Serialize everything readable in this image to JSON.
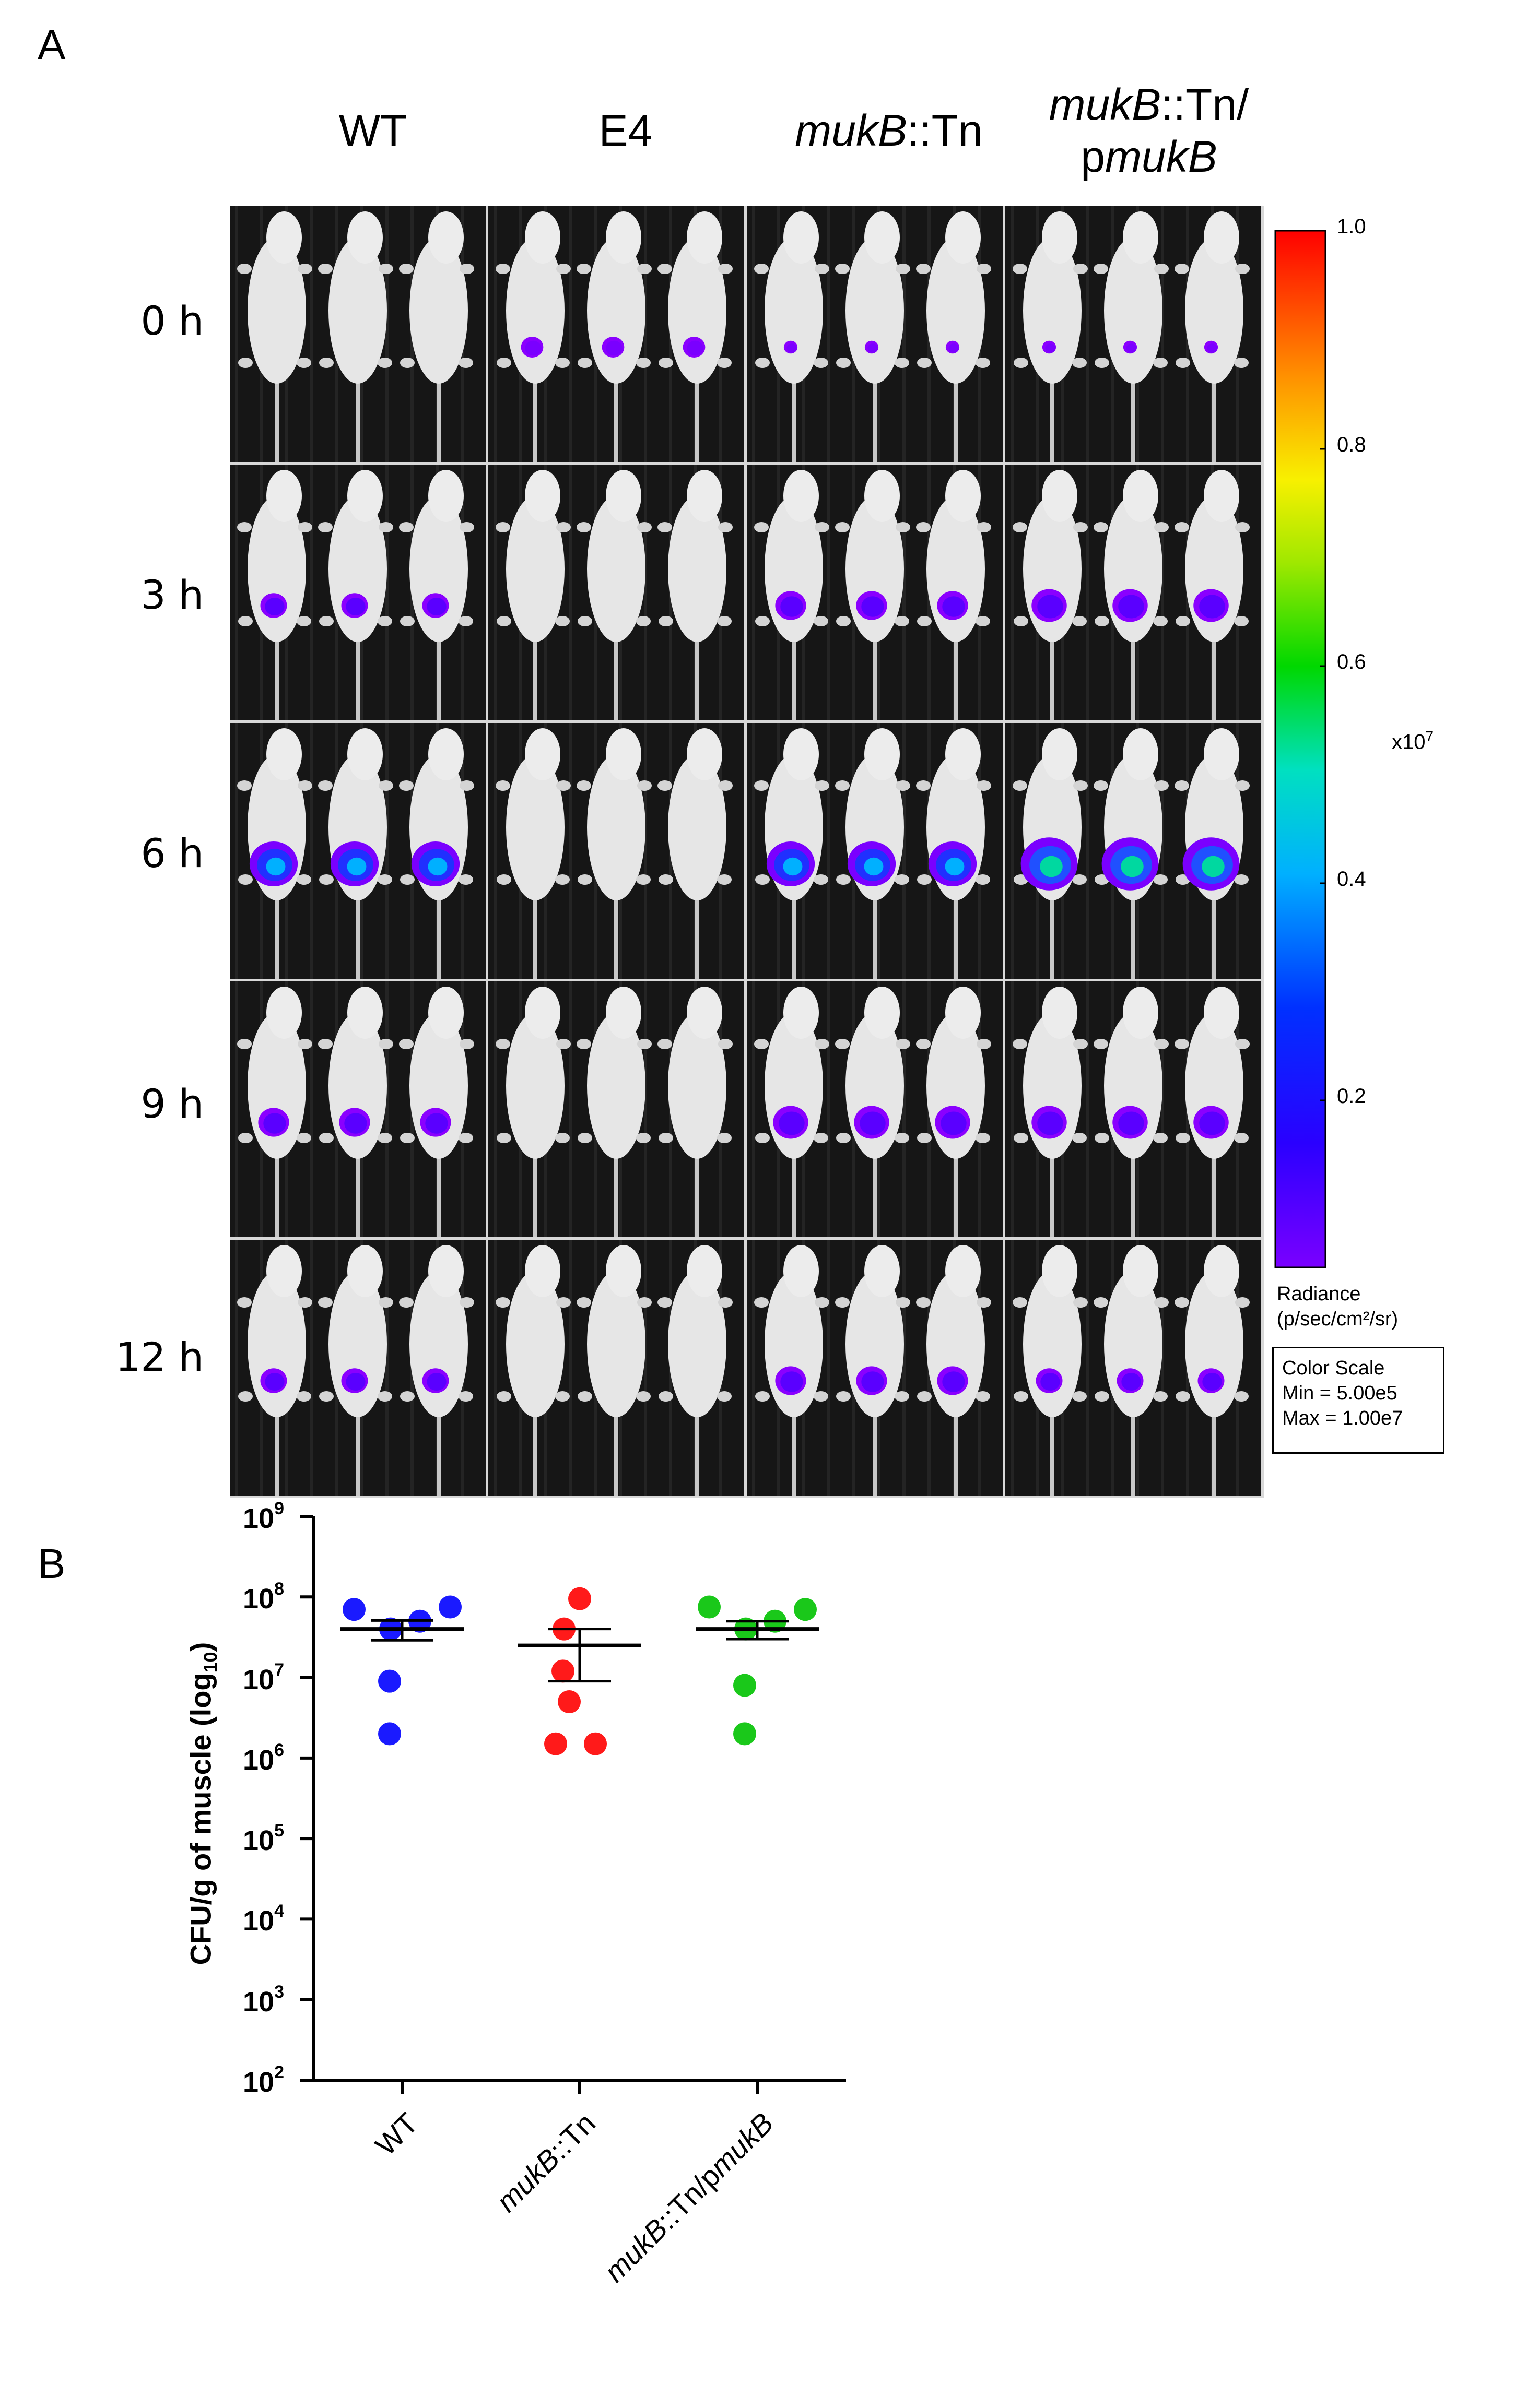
{
  "panel_a": {
    "letter": "A",
    "columns": [
      {
        "italic": "",
        "plain": "WT",
        "line2_pre": "",
        "line2_italic": ""
      },
      {
        "italic": "",
        "plain": "E4",
        "line2_pre": "",
        "line2_italic": ""
      },
      {
        "italic": "mukB",
        "plain": "::Tn",
        "line2_pre": "",
        "line2_italic": ""
      },
      {
        "italic": "mukB",
        "plain": "::Tn/",
        "line2_pre": "p",
        "line2_italic": "mukB"
      }
    ],
    "rows": [
      "0 h",
      "3 h",
      "6 h",
      "9 h",
      "12 h"
    ],
    "colorbar": {
      "ticks": [
        "1.0",
        "0.8",
        "0.6",
        "0.4",
        "0.2"
      ],
      "multiplier": "x10",
      "multiplier_exp": "7",
      "radiance_label": "Radiance",
      "radiance_units": "(p/sec/cm²/sr)",
      "scale_title": "Color Scale",
      "scale_min": "Min = 5.00e5",
      "scale_max": "Max = 1.00e7"
    },
    "signal_intensity": [
      [
        0.0,
        0.15,
        0.05,
        0.05
      ],
      [
        0.2,
        0.0,
        0.25,
        0.3
      ],
      [
        0.45,
        0.0,
        0.45,
        0.55
      ],
      [
        0.25,
        0.0,
        0.3,
        0.3
      ],
      [
        0.2,
        0.0,
        0.25,
        0.2
      ]
    ]
  },
  "panel_b": {
    "letter": "B",
    "ylabel_main": "CFU/g of muscle (log",
    "ylabel_sub": "10",
    "ylabel_end": ")",
    "yticks": [
      {
        "base": "10",
        "exp": "9"
      },
      {
        "base": "10",
        "exp": "8"
      },
      {
        "base": "10",
        "exp": "7"
      },
      {
        "base": "10",
        "exp": "6"
      },
      {
        "base": "10",
        "exp": "5"
      },
      {
        "base": "10",
        "exp": "4"
      },
      {
        "base": "10",
        "exp": "3"
      },
      {
        "base": "10",
        "exp": "2"
      }
    ],
    "xticks": [
      {
        "italic": "",
        "plain": "WT",
        "italic2": "",
        "plain_pre2": ""
      },
      {
        "italic": "mukB",
        "plain": "::Tn",
        "italic2": "",
        "plain_pre2": ""
      },
      {
        "italic": "mukB",
        "plain": "::Tn/",
        "italic2": "mukB",
        "plain_pre2": "p"
      }
    ]
  },
  "chart_data": {
    "type": "scatter",
    "title": "",
    "xlabel": "",
    "ylabel": "CFU/g of muscle (log10)",
    "yscale": "log",
    "ylim": [
      100,
      1000000000
    ],
    "categories": [
      "WT",
      "mukB::Tn",
      "mukB::Tn/pmukB"
    ],
    "series": [
      {
        "name": "WT",
        "color": "#1a1aff",
        "points": [
          70000000,
          75000000,
          50000000,
          40000000,
          9000000,
          2000000
        ],
        "mean": 40000000,
        "sem_low": 29000000,
        "sem_high": 51000000
      },
      {
        "name": "mukB::Tn",
        "color": "#ff1a1a",
        "points": [
          95000000,
          40000000,
          12000000,
          5000000,
          1500000,
          1500000
        ],
        "mean": 25000000,
        "sem_low": 9000000,
        "sem_high": 40000000
      },
      {
        "name": "mukB::Tn/pmukB",
        "color": "#1ac81a",
        "points": [
          75000000,
          70000000,
          50000000,
          40000000,
          8000000,
          2000000
        ],
        "mean": 40000000,
        "sem_low": 30000000,
        "sem_high": 50000000
      }
    ]
  }
}
